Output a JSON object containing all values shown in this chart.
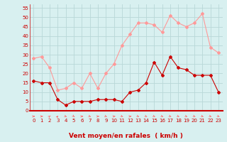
{
  "hours": [
    0,
    1,
    2,
    3,
    4,
    5,
    6,
    7,
    8,
    9,
    10,
    11,
    12,
    13,
    14,
    15,
    16,
    17,
    18,
    19,
    20,
    21,
    22,
    23
  ],
  "wind_avg": [
    16,
    15,
    15,
    6,
    3,
    5,
    5,
    5,
    6,
    6,
    6,
    5,
    10,
    11,
    15,
    26,
    19,
    29,
    23,
    22,
    19,
    19,
    19,
    10
  ],
  "wind_gust": [
    28,
    29,
    23,
    11,
    12,
    15,
    12,
    20,
    12,
    20,
    25,
    35,
    41,
    47,
    47,
    46,
    42,
    51,
    47,
    45,
    47,
    52,
    34,
    31
  ],
  "bg_color": "#d8f0f0",
  "grid_color": "#b8d8d8",
  "avg_color": "#cc0000",
  "gust_color": "#ff9999",
  "xlabel": "Vent moyen/en rafales  ( km/h )",
  "xlabel_color": "#cc0000",
  "ylabel_ticks": [
    0,
    5,
    10,
    15,
    20,
    25,
    30,
    35,
    40,
    45,
    50,
    55
  ],
  "ylim": [
    0,
    57
  ],
  "xlim": [
    -0.5,
    23.5
  ],
  "arrow_color": "#ff6666"
}
